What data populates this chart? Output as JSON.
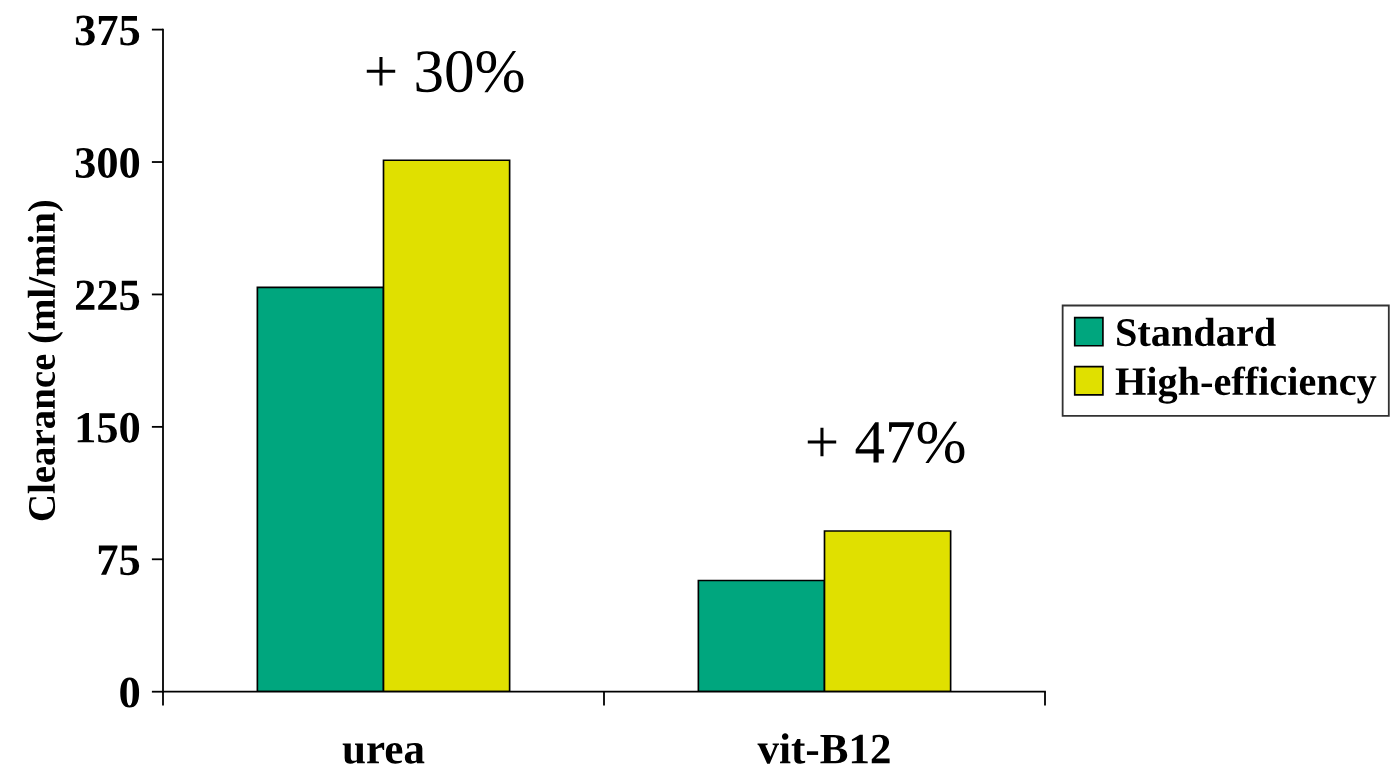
{
  "chart_data": {
    "type": "bar",
    "ylabel": "Clearance (ml/min)",
    "categories": [
      "urea",
      "vit-B12"
    ],
    "series": [
      {
        "name": "Standard",
        "color": "#00a67e",
        "values": [
          229,
          63
        ]
      },
      {
        "name": "High-efficiency",
        "color": "#e0e000",
        "values": [
          301,
          91
        ]
      }
    ],
    "ylim": [
      0,
      375
    ],
    "yticks": [
      0,
      75,
      150,
      225,
      300,
      375
    ],
    "annotations": [
      "+ 30%",
      "+ 47%"
    ],
    "legend": "right",
    "grid": false
  }
}
